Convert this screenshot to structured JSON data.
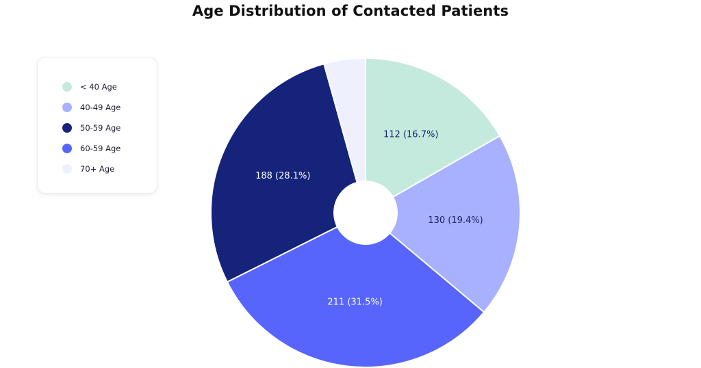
{
  "chart_data": {
    "type": "pie",
    "title": "Age Distribution of Contacted Patients",
    "donut_hole": true,
    "legend_position": "top-left",
    "slices": [
      {
        "label": "< 40 Age",
        "value": 112,
        "display": "112 (16.7%)",
        "color": "#c4eadd",
        "text_color": "#16236b"
      },
      {
        "label": "40-49 Age",
        "value": 130,
        "display": "130 (19.4%)",
        "color": "#a7b1fd",
        "text_color": "#16236b"
      },
      {
        "label": "60-59 Age",
        "value": 211,
        "display": "211 (31.5%)",
        "color": "#5765fc",
        "text_color": "#ffffff"
      },
      {
        "label": "50-59 Age",
        "value": 188,
        "display": "188 (28.1%)",
        "color": "#15247a",
        "text_color": "#ffffff"
      },
      {
        "label": "70+ Age",
        "value": 29,
        "display": "",
        "color": "#eef0fd",
        "text_color": "#16236b"
      }
    ]
  },
  "legend": {
    "items": [
      {
        "label": "< 40 Age",
        "color": "#c4eadd"
      },
      {
        "label": "40-49 Age",
        "color": "#a7b1fd"
      },
      {
        "label": "50-59 Age",
        "color": "#15247a"
      },
      {
        "label": "60-59 Age",
        "color": "#5765fc"
      },
      {
        "label": "70+ Age",
        "color": "#eef0fd"
      }
    ]
  }
}
